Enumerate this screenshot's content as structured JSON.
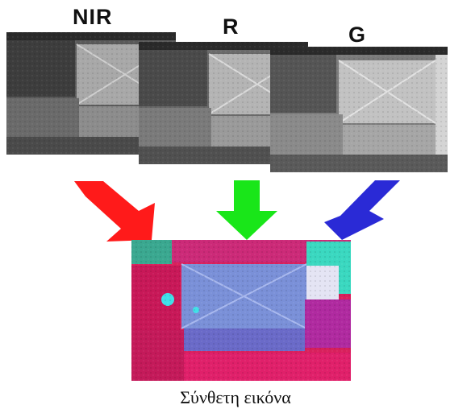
{
  "bands": [
    {
      "label": "NIR"
    },
    {
      "label": "R"
    },
    {
      "label": "G"
    }
  ],
  "caption": "Σύνθετη εικόνα",
  "arrows": [
    {
      "name": "red-arrow",
      "color": "#ff1a1a"
    },
    {
      "name": "green-arrow",
      "color": "#19e619"
    },
    {
      "name": "blue-arrow",
      "color": "#2a2ad6"
    }
  ],
  "composite_colors": {
    "vegetation": "#d8205c",
    "bare_field": "#7a90d8",
    "water_edge": "#3ad8c0"
  }
}
